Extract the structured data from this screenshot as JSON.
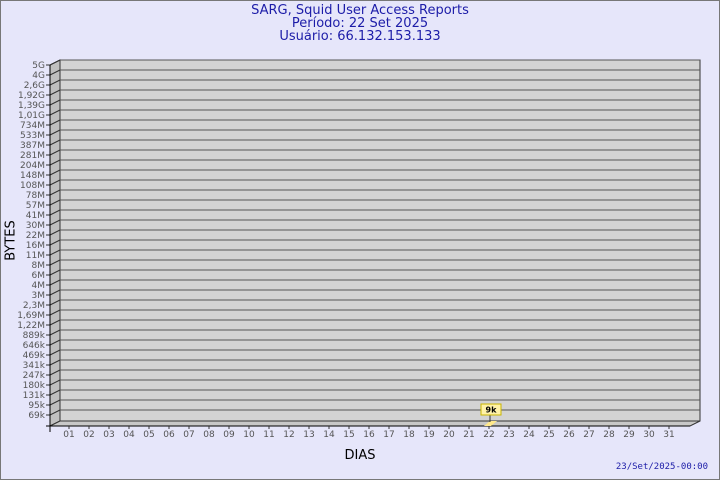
{
  "chart_data": {
    "type": "bar",
    "title": "SARG, Squid User Access Reports",
    "subtitle_period": "Período: 22 Set 2025",
    "subtitle_user": "Usuário: 66.132.153.133",
    "xlabel": "DIAS",
    "ylabel": "BYTES",
    "y_scale": "log",
    "grid": true,
    "y_ticks": [
      "5G",
      "4G",
      "2,6G",
      "1,92G",
      "1,39G",
      "1,01G",
      "734M",
      "533M",
      "387M",
      "281M",
      "204M",
      "148M",
      "108M",
      "78M",
      "57M",
      "41M",
      "30M",
      "22M",
      "16M",
      "11M",
      "8M",
      "6M",
      "4M",
      "3M",
      "2,3M",
      "1,69M",
      "1,22M",
      "889k",
      "646k",
      "469k",
      "341k",
      "247k",
      "180k",
      "131k",
      "95k",
      "69k"
    ],
    "categories": [
      "01",
      "02",
      "03",
      "04",
      "05",
      "06",
      "07",
      "08",
      "09",
      "10",
      "11",
      "12",
      "13",
      "14",
      "15",
      "16",
      "17",
      "18",
      "19",
      "20",
      "21",
      "22",
      "23",
      "24",
      "25",
      "26",
      "27",
      "28",
      "29",
      "30",
      "31"
    ],
    "series": [
      {
        "points": [
          {
            "x": "22",
            "value": 9000,
            "label": "9k"
          }
        ]
      }
    ],
    "colors": {
      "bar": "#ffe88c",
      "label_box": "#fff2a8",
      "wall": "#d3d3d3",
      "background": "#e6e6fa",
      "title": "#1c1ca8"
    }
  },
  "timestamp": "23/Set/2025-00:00"
}
